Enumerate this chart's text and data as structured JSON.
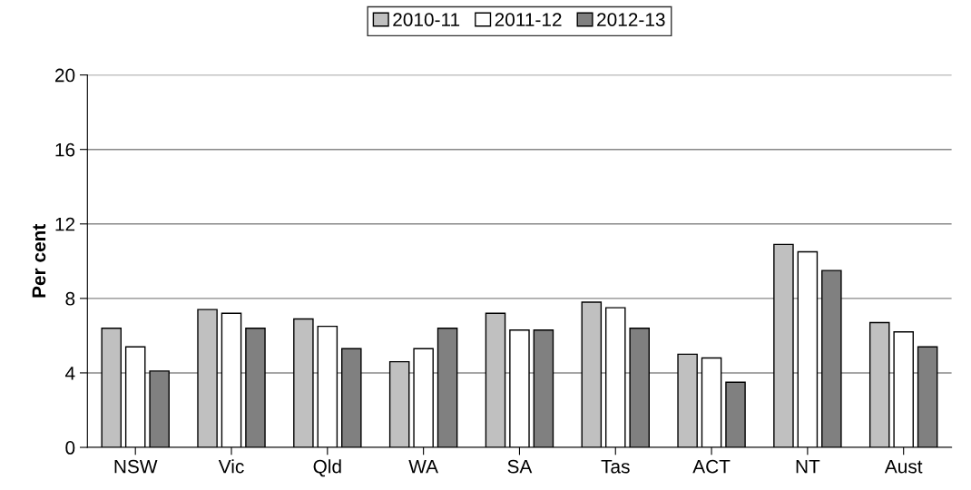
{
  "chart_data": {
    "type": "bar",
    "ylabel": "Per cent",
    "categories": [
      "NSW",
      "Vic",
      "Qld",
      "WA",
      "SA",
      "Tas",
      "ACT",
      "NT",
      "Aust"
    ],
    "series": [
      {
        "name": "2010-11",
        "color": "#c0c0c0",
        "values": [
          6.4,
          7.4,
          6.9,
          4.6,
          7.2,
          7.8,
          5.0,
          10.9,
          6.7
        ]
      },
      {
        "name": "2011-12",
        "color": "#ffffff",
        "values": [
          5.4,
          7.2,
          6.5,
          5.3,
          6.3,
          7.5,
          4.8,
          10.5,
          6.2
        ]
      },
      {
        "name": "2012-13",
        "color": "#808080",
        "values": [
          4.1,
          6.4,
          5.3,
          6.4,
          6.3,
          6.4,
          3.5,
          9.5,
          5.4
        ]
      }
    ],
    "ylim": [
      0,
      20
    ],
    "yticks": [
      0,
      4,
      8,
      12,
      16,
      20
    ],
    "grid": "y",
    "legend": "top"
  }
}
